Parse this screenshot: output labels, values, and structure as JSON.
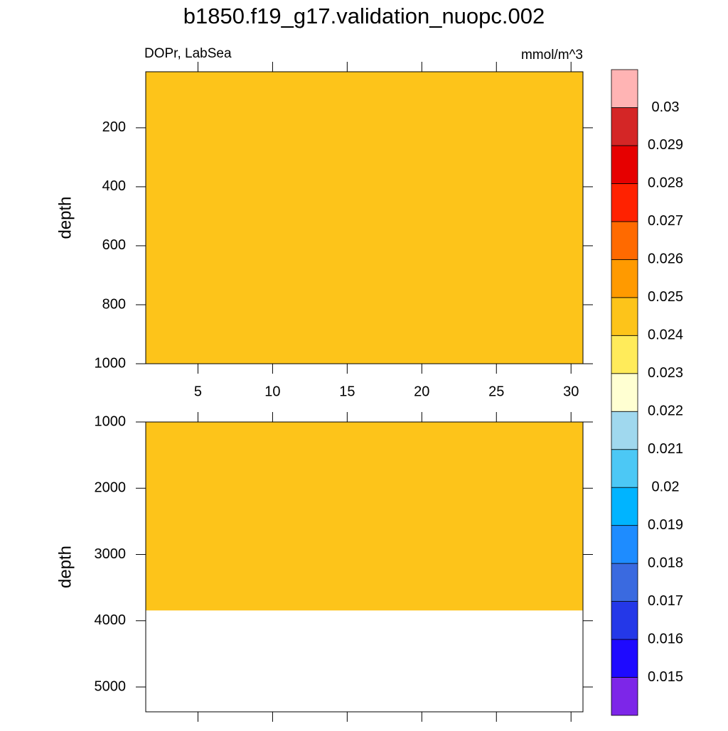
{
  "chart_data": {
    "type": "contour",
    "title": "b1850.f19_g17.validation_nuopc.002",
    "left_string": "DOPr, LabSea",
    "right_string": "mmol/m^3",
    "xlim": [
      1.5,
      30.8
    ],
    "xticks": [
      5,
      10,
      15,
      20,
      25,
      30
    ],
    "panels": [
      {
        "ylabel": "depth",
        "ylim": [
          10,
          1000
        ],
        "yticks": [
          200,
          400,
          600,
          800,
          1000
        ],
        "fill": {
          "value": 0.0245,
          "depth_range": [
            10,
            1000
          ]
        }
      },
      {
        "ylabel": "depth",
        "ylim": [
          1000,
          5375
        ],
        "yticks": [
          1000,
          2000,
          3000,
          4000,
          5000
        ],
        "fill": {
          "value": 0.0245,
          "depth_range": [
            1000,
            3845
          ]
        }
      }
    ],
    "colorbar": {
      "levels": [
        0.015,
        0.016,
        0.017,
        0.018,
        0.019,
        0.02,
        0.021,
        0.022,
        0.023,
        0.024,
        0.025,
        0.026,
        0.027,
        0.028,
        0.029,
        0.03
      ],
      "colors": [
        "#7d26e8",
        "#1e0aff",
        "#2438e8",
        "#3a6ae0",
        "#1e8cff",
        "#00b4ff",
        "#4cc8f5",
        "#a0d8ee",
        "#ffffd2",
        "#ffeb5a",
        "#fdc41a",
        "#ff9a00",
        "#ff6a00",
        "#ff2200",
        "#e60000",
        "#d42626",
        "#ffb4b4"
      ]
    }
  }
}
